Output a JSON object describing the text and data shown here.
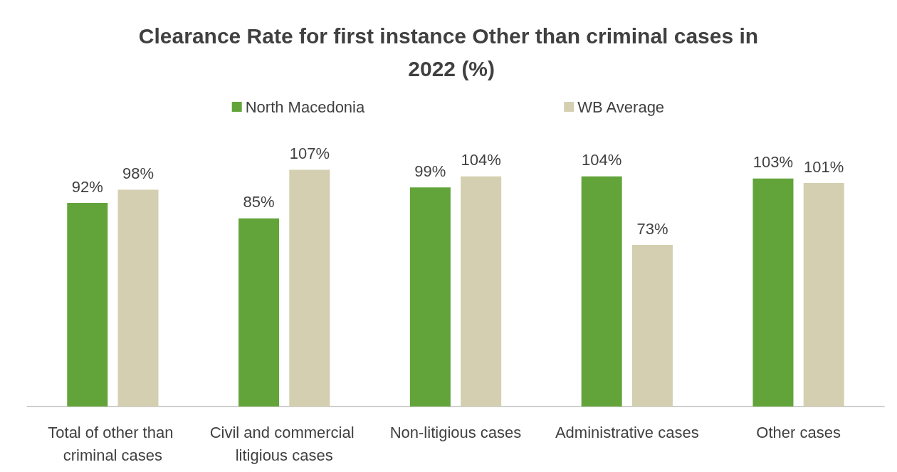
{
  "chart_data": {
    "type": "bar",
    "title": "Clearance Rate for first instance Other than criminal cases in 2022 (%)",
    "categories": [
      "Total of other than criminal cases",
      "Civil and commercial litigious cases",
      "Non-litigious cases",
      "Administrative cases",
      "Other cases"
    ],
    "series": [
      {
        "name": "North Macedonia",
        "color": "#62a43a",
        "values": [
          92,
          85,
          99,
          104,
          103
        ],
        "value_labels": [
          "92%",
          "85%",
          "99%",
          "104%",
          "103%"
        ]
      },
      {
        "name": "WB Average",
        "color": "#d4cfb0",
        "values": [
          98,
          107,
          104,
          73,
          101
        ],
        "value_labels": [
          "98%",
          "107%",
          "104%",
          "73%",
          "101%"
        ]
      }
    ],
    "legend": "top",
    "grid": false
  }
}
